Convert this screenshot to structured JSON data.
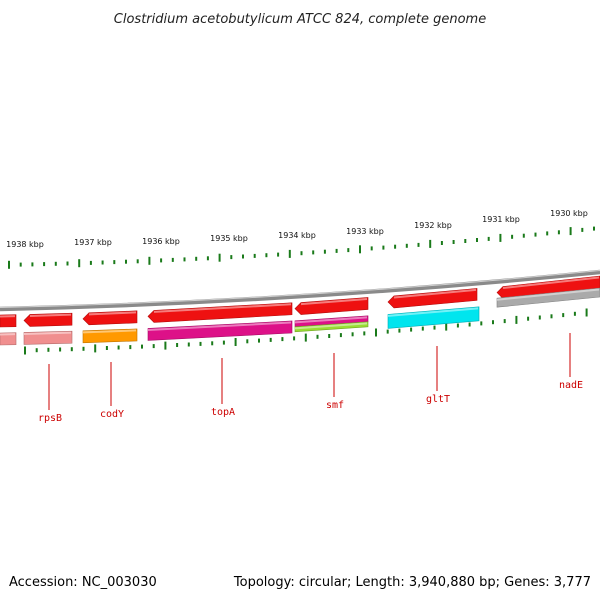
{
  "title": "Clostridium acetobutylicum ATCC 824, complete genome",
  "footer": {
    "accession": "Accession: NC_003030",
    "summary": "Topology: circular; Length: 3,940,880 bp; Genes: 3,777"
  },
  "colors": {
    "backbone": "#888888",
    "tick": "#1a7a1a",
    "gene_label": "#cc0000",
    "cds_forward": "#ee1111",
    "pink": "#f08f8f",
    "orange": "#ff9900",
    "magenta": "#dd1188",
    "lime": "#99dd33",
    "cyan": "#00e5ee",
    "gray": "#aaaaaa"
  },
  "scale": {
    "kbp_labels": [
      "1938 kbp",
      "1937 kbp",
      "1936 kbp",
      "1935 kbp",
      "1934 kbp",
      "1933 kbp",
      "1932 kbp",
      "1931 kbp",
      "1930 kbp"
    ]
  },
  "genes": [
    {
      "name": "rpsB",
      "color": "pink"
    },
    {
      "name": "codY",
      "color": "orange"
    },
    {
      "name": "topA",
      "color": "magenta"
    },
    {
      "name": "smf",
      "color": "magenta"
    },
    {
      "name": "gltT",
      "color": "cyan"
    },
    {
      "name": "nadE",
      "color": "gray"
    }
  ]
}
